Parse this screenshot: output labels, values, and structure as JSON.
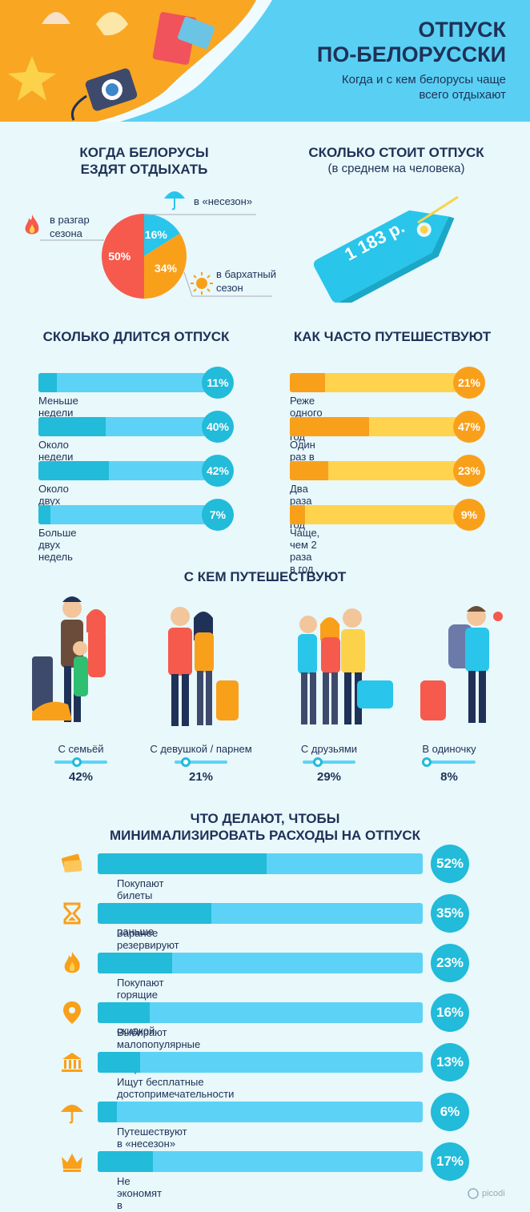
{
  "header": {
    "title_line1": "ОТПУСК",
    "title_line2": "ПО-БЕЛОРУССКИ",
    "subtitle": "Когда и с кем белорусы чаще всего отдыхают"
  },
  "when": {
    "title_line1": "КОГДА БЕЛОРУСЫ",
    "title_line2": "ЕЗДЯТ ОТДЫХАТЬ",
    "slices": [
      {
        "label": "в разгар сезона",
        "value": 50,
        "display": "50%",
        "color": "#f65a4d"
      },
      {
        "label": "в «несезон»",
        "value": 16,
        "display": "16%",
        "color": "#29c5ea"
      },
      {
        "label": "в бархатный сезон",
        "value": 34,
        "display": "34%",
        "color": "#f9a01b"
      }
    ],
    "label_peak_line1": "в разгар",
    "label_peak_line2": "сезона",
    "label_offseason": "в «несезон»",
    "label_velvet_line1": "в бархатный",
    "label_velvet_line2": "сезон"
  },
  "cost": {
    "title": "СКОЛЬКО СТОИТ ОТПУСК",
    "subtitle": "(в среднем на человека)",
    "amount": "1 183 р."
  },
  "duration": {
    "title": "СКОЛЬКО ДЛИТСЯ ОТПУСК",
    "items": [
      {
        "label": "Меньше недели",
        "value": 11,
        "display": "11%"
      },
      {
        "label": "Около недели",
        "value": 40,
        "display": "40%"
      },
      {
        "label": "Около двух недель",
        "value": 42,
        "display": "42%"
      },
      {
        "label": "Больше двух недель",
        "value": 7,
        "display": "7%"
      }
    ]
  },
  "frequency": {
    "title": "КАК ЧАСТО ПУТЕШЕСТВУЮТ",
    "items": [
      {
        "label": "Реже одного раза в год",
        "value": 21,
        "display": "21%"
      },
      {
        "label": "Один раз в год",
        "value": 47,
        "display": "47%"
      },
      {
        "label": "Два раза в год",
        "value": 23,
        "display": "23%"
      },
      {
        "label": "Чаще, чем 2 раза в год",
        "value": 9,
        "display": "9%"
      }
    ]
  },
  "companions": {
    "title": "С КЕМ ПУТЕШЕСТВУЮТ",
    "items": [
      {
        "label": "С семьёй",
        "value": 42,
        "display": "42%"
      },
      {
        "label": "С девушкой / парнем",
        "value": 21,
        "display": "21%"
      },
      {
        "label": "С друзьями",
        "value": 29,
        "display": "29%"
      },
      {
        "label": "В одиночку",
        "value": 8,
        "display": "8%"
      }
    ]
  },
  "savings": {
    "title_line1": "ЧТО ДЕЛАЮТ, ЧТОБЫ",
    "title_line2": "МИНИМАЛИЗИРОВАТЬ РАСХОДЫ НА ОТПУСК",
    "items": [
      {
        "label": "Покупают билеты как можно раньше",
        "value": 52,
        "display": "52%",
        "icon": "tickets-icon"
      },
      {
        "label": "Заранее резервируют места в отелях",
        "value": 35,
        "display": "35%",
        "icon": "hourglass-icon"
      },
      {
        "label": "Покупают горящие путёвки со скидкой",
        "value": 23,
        "display": "23%",
        "icon": "fire-icon"
      },
      {
        "label": "Выбирают малопопулярные дешёвые направления",
        "value": 16,
        "display": "16%",
        "icon": "location-pin-icon"
      },
      {
        "label": "Ищут бесплатные достопримечательности",
        "value": 13,
        "display": "13%",
        "icon": "museum-icon"
      },
      {
        "label": "Путешествуют в «несезон»",
        "value": 6,
        "display": "6%",
        "icon": "umbrella-icon"
      },
      {
        "label": "Не экономят в отпуске",
        "value": 17,
        "display": "17%",
        "icon": "crown-icon"
      }
    ]
  },
  "chart_data": [
    {
      "type": "pie",
      "title": "КОГДА БЕЛОРУСЫ ЕЗДЯТ ОТДЫХАТЬ",
      "categories": [
        "в разгар сезона",
        "в «несезон»",
        "в бархатный сезон"
      ],
      "values": [
        50,
        16,
        34
      ]
    },
    {
      "type": "bar",
      "title": "СКОЛЬКО ДЛИТСЯ ОТПУСК",
      "categories": [
        "Меньше недели",
        "Около недели",
        "Около двух недель",
        "Больше двух недель"
      ],
      "values": [
        11,
        40,
        42,
        7
      ]
    },
    {
      "type": "bar",
      "title": "КАК ЧАСТО ПУТЕШЕСТВУЮТ",
      "categories": [
        "Реже одного раза в год",
        "Один раз в год",
        "Два раза в год",
        "Чаще, чем 2 раза в год"
      ],
      "values": [
        21,
        47,
        23,
        9
      ]
    },
    {
      "type": "bar",
      "title": "С КЕМ ПУТЕШЕСТВУЮТ",
      "categories": [
        "С семьёй",
        "С девушкой / парнем",
        "С друзьями",
        "В одиночку"
      ],
      "values": [
        42,
        21,
        29,
        8
      ]
    },
    {
      "type": "bar",
      "title": "ЧТО ДЕЛАЮТ, ЧТОБЫ МИНИМАЛИЗИРОВАТЬ РАСХОДЫ НА ОТПУСК",
      "categories": [
        "Покупают билеты как можно раньше",
        "Заранее резервируют места в отелях",
        "Покупают горящие путёвки со скидкой",
        "Выбирают малопопулярные дешёвые направления",
        "Ищут бесплатные достопримечательности",
        "Путешествуют в «несезон»",
        "Не экономят в отпуске"
      ],
      "values": [
        52,
        35,
        23,
        16,
        13,
        6,
        17
      ]
    }
  ],
  "brand": {
    "logo": "picodi"
  }
}
